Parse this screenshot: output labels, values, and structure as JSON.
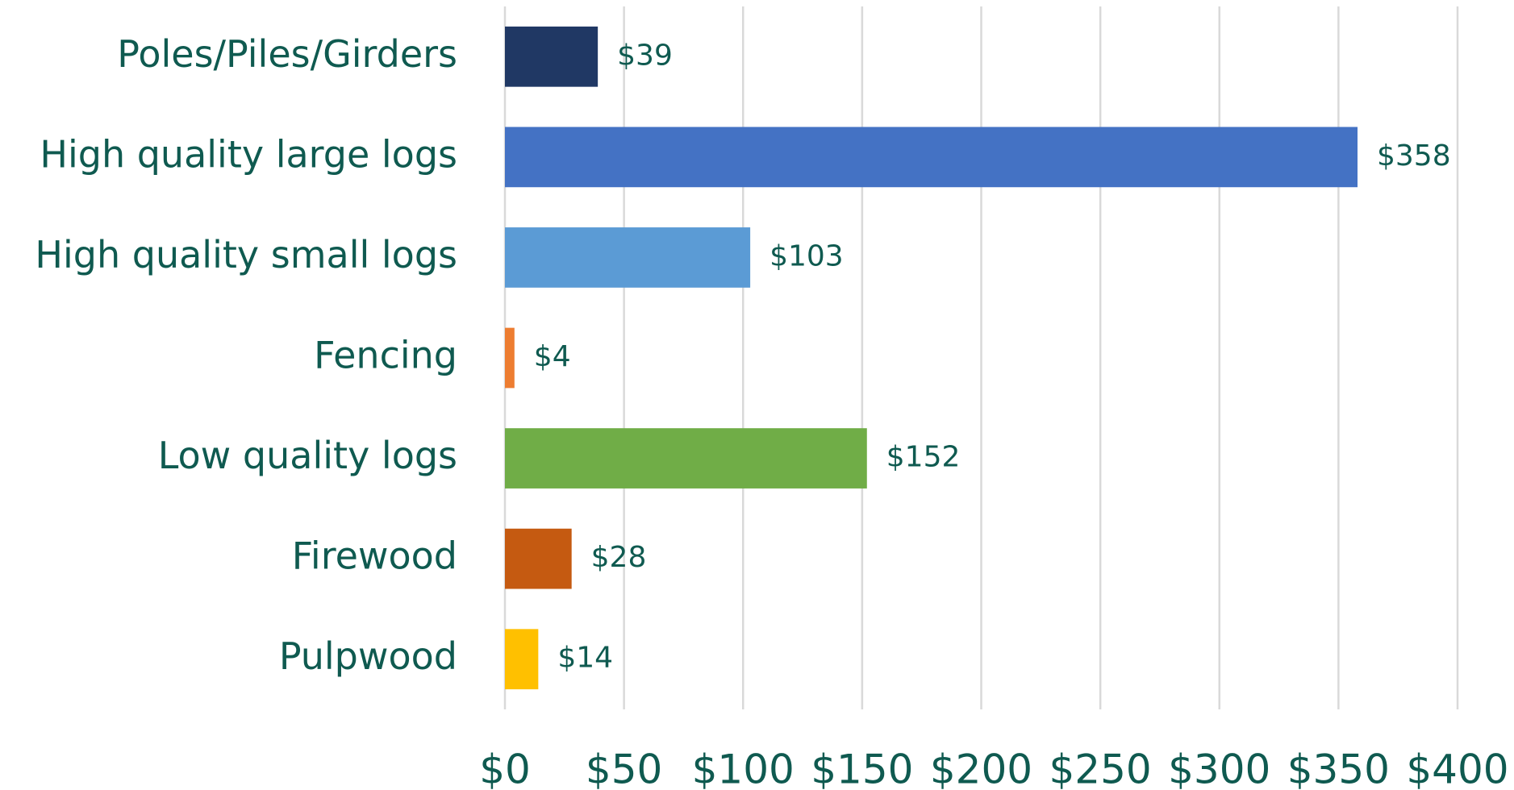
{
  "chart_data": {
    "type": "bar",
    "orientation": "horizontal",
    "categories": [
      "Poles/Piles/Girders",
      "High quality large logs",
      "High quality small logs",
      "Fencing",
      "Low quality logs",
      "Firewood",
      "Pulpwood"
    ],
    "values": [
      39,
      358,
      103,
      4,
      152,
      28,
      14
    ],
    "value_labels": [
      "$39",
      "$358",
      "$103",
      "$4",
      "$152",
      "$28",
      "$14"
    ],
    "colors": [
      "#203864",
      "#4472c4",
      "#5b9bd5",
      "#ed7d31",
      "#70ad47",
      "#c55a11",
      "#ffc000"
    ],
    "xlim": [
      0,
      400
    ],
    "xticks": [
      {
        "value": 0,
        "label": "$0"
      },
      {
        "value": 50,
        "label": "$50"
      },
      {
        "value": 100,
        "label": "$100"
      },
      {
        "value": 150,
        "label": "$150"
      },
      {
        "value": 200,
        "label": "$200"
      },
      {
        "value": 250,
        "label": "$250"
      },
      {
        "value": 300,
        "label": "$300"
      },
      {
        "value": 350,
        "label": "$350"
      },
      {
        "value": 400,
        "label": "$400"
      }
    ],
    "grid": true
  }
}
